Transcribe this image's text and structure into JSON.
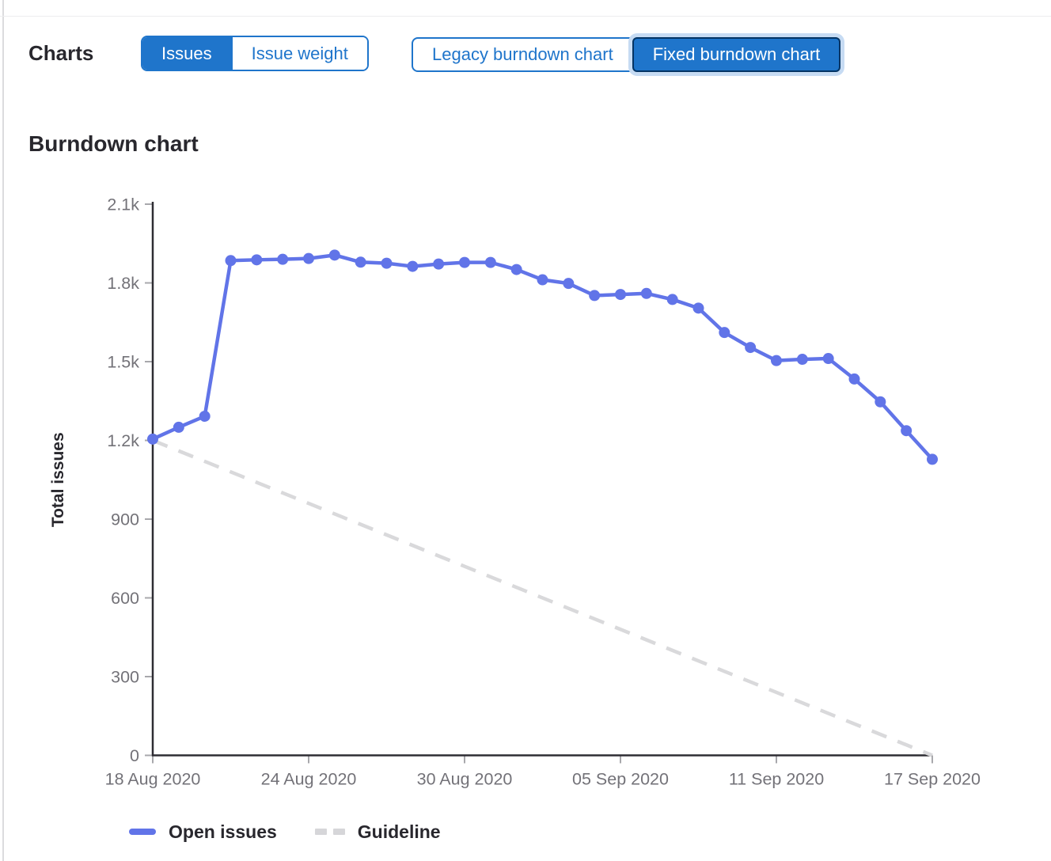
{
  "toolbar": {
    "charts_label": "Charts",
    "issue_toggle": {
      "options": [
        "Issues",
        "Issue weight"
      ],
      "selected": "Issues",
      "issues_label": "Issues",
      "issue_weight_label": "Issue weight"
    },
    "version_toggle": {
      "options": [
        "Legacy burndown chart",
        "Fixed burndown chart"
      ],
      "selected": "Fixed burndown chart",
      "legacy_label": "Legacy burndown chart",
      "fixed_label": "Fixed burndown chart"
    }
  },
  "section_title": "Burndown chart",
  "chart_data": {
    "type": "line",
    "title": "Burndown chart",
    "xlabel": "",
    "ylabel": "Total issues",
    "ylim": [
      0,
      2100
    ],
    "y_tick_labels": [
      "0",
      "300",
      "600",
      "900",
      "1.2k",
      "1.5k",
      "1.8k",
      "2.1k"
    ],
    "x_unit": "day",
    "x_tick_positions": [
      0,
      6,
      12,
      18,
      24,
      30
    ],
    "x_tick_labels": [
      "18 Aug 2020",
      "24 Aug 2020",
      "30 Aug 2020",
      "05 Sep 2020",
      "11 Sep 2020",
      "17 Sep 2020"
    ],
    "grid": false,
    "legend_position": "bottom",
    "series": [
      {
        "name": "Open issues",
        "type": "line-with-points",
        "color": "#6174e8",
        "values": [
          1205,
          1250,
          1292,
          1885,
          1888,
          1890,
          1893,
          1906,
          1879,
          1875,
          1863,
          1872,
          1878,
          1878,
          1851,
          1812,
          1798,
          1752,
          1756,
          1760,
          1737,
          1704,
          1611,
          1554,
          1504,
          1509,
          1512,
          1434,
          1347,
          1237,
          1128
        ]
      },
      {
        "name": "Guideline",
        "type": "dashed-line",
        "color": "#d9d9db",
        "points": [
          [
            0,
            1200
          ],
          [
            30,
            0
          ]
        ]
      }
    ]
  },
  "colors": {
    "accent_blue": "#1f75cb",
    "active_button_border": "#033464",
    "focus_ring": "#c6dbf3",
    "series_blue": "#6174e8",
    "guideline_gray": "#d9d9db",
    "axis_line": "#2e2d33",
    "tick_mark": "#a8a8ac",
    "tick_label": "#737278",
    "text_dark": "#28272d",
    "page_border": "#dcdcde"
  }
}
